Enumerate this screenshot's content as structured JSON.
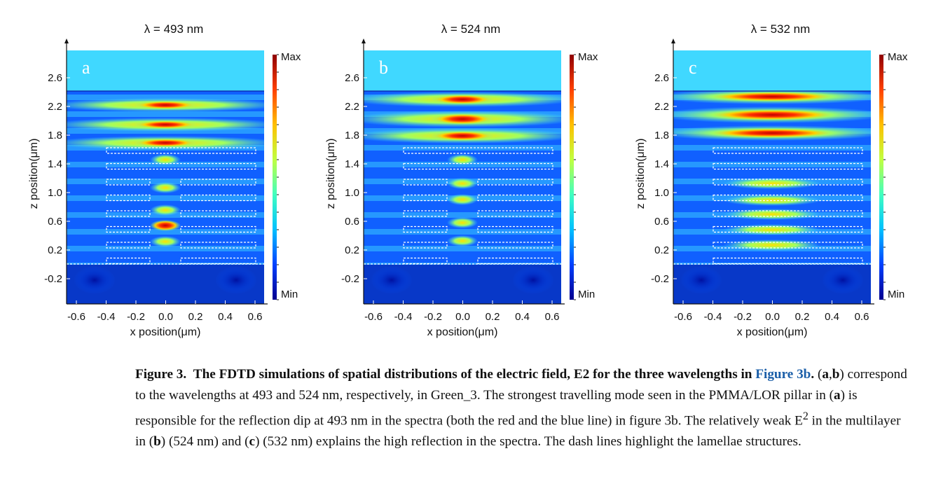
{
  "figure": {
    "panels": [
      {
        "id": "a",
        "title": "λ = 493 nm",
        "letter": "a",
        "cb_max": "Max",
        "cb_min": "Min",
        "xlabel": "x position(μm)",
        "ylabel": "z position(μm)"
      },
      {
        "id": "b",
        "title": "λ = 524 nm",
        "letter": "b",
        "cb_max": "Max",
        "cb_min": "Min",
        "xlabel": "x position(μm)",
        "ylabel": "z position(μm)"
      },
      {
        "id": "c",
        "title": "λ = 532 nm",
        "letter": "c",
        "cb_max": "Max",
        "cb_min": "Min",
        "xlabel": "x position(μm)",
        "ylabel": "z position(μm)"
      }
    ],
    "x_ticks": [
      "-0.6",
      "-0.4",
      "-0.2",
      "0.0",
      "0.2",
      "0.4",
      "0.6"
    ],
    "y_ticks": [
      "2.6",
      "2.2",
      "1.8",
      "1.4",
      "1.0",
      "0.6",
      "0.2",
      "-0.2"
    ],
    "colormap": [
      "#00008f",
      "#0040ff",
      "#00c0ff",
      "#40ffc0",
      "#c0ff40",
      "#ffc000",
      "#ff4000",
      "#8f0000"
    ]
  },
  "caption": {
    "label": "Figure 3.",
    "title_pre": "The FDTD simulations of spatial distributions of the electric field, E2 for the three wavelengths in ",
    "title_link": "Figure 3b",
    "title_post": ".",
    "body_1": " (",
    "ab": "a",
    "comma": ",",
    "bb": "b",
    "body_2": ") correspond to the wavelengths at 493 and 524 nm, respectively, in Green_3. The strongest travelling mode seen in the PMMA/LOR pillar in (",
    "a2": "a",
    "body_3": ") is responsible for the reflection dip at 493 nm in the spectra (both the red and the blue line) in figure 3b. The relatively weak E",
    "sup": "2",
    "body_4": " in the multilayer in (",
    "b2": "b",
    "body_5": ") (524 nm) and (",
    "c2": "c",
    "body_6": ") (532 nm) explains the high reflection in the spectra. The dash lines highlight the lamellae structures."
  }
}
